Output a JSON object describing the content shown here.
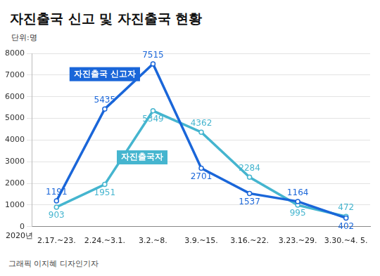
{
  "chart_data": {
    "type": "line",
    "title": "자진출국 신고 및 자진출국 현황",
    "subtitle": "단위:명",
    "x_label": "2020년",
    "annotations": [
      "그래픽 이지혜 디자인기자"
    ],
    "categories": [
      "2.17.~23.",
      "2.24.~3.1.",
      "3.2.~8.",
      "3.9.~15.",
      "3.16.~22.",
      "3.23.~29.",
      "3.30.~4. 5."
    ],
    "series": [
      {
        "name": "자진출국 신고자",
        "color": "#1a66d9",
        "marker": "circle",
        "values": [
          1191,
          5435,
          7515,
          2701,
          1537,
          1164,
          402
        ]
      },
      {
        "name": "자진출국자",
        "color": "#45b5cf",
        "marker": "circle",
        "values": [
          903,
          1951,
          5349,
          4362,
          2284,
          995,
          472
        ]
      }
    ],
    "ylim": [
      0,
      8000
    ],
    "yticks": [
      0,
      1000,
      2000,
      3000,
      4000,
      5000,
      6000,
      7000,
      8000
    ],
    "grid": true,
    "data_labels": true
  }
}
